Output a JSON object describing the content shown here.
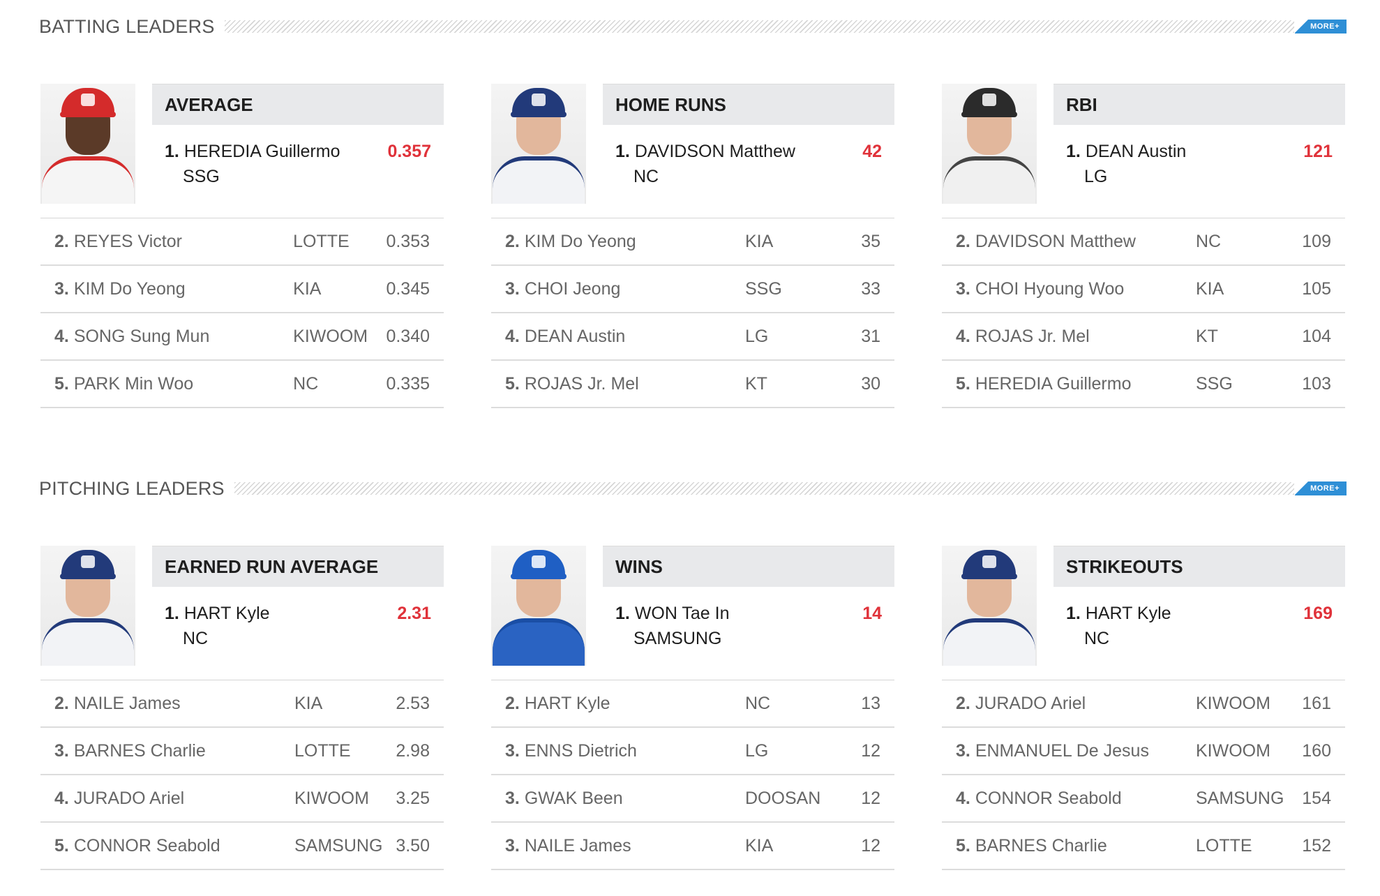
{
  "more_label": "MORE+",
  "batting": {
    "title": "BATTING LEADERS",
    "panels": [
      {
        "category": "AVERAGE",
        "leader": {
          "rank": "1.",
          "name": "HEREDIA Guillermo",
          "team": "SSG",
          "value": "0.357"
        },
        "photo": {
          "cap": "#d42b2b",
          "jersey": "#f5f5f5",
          "collar": "#d42b2b",
          "skin": "dark"
        },
        "rows": [
          {
            "rank": "2.",
            "name": "REYES Victor",
            "team": "LOTTE",
            "value": "0.353"
          },
          {
            "rank": "3.",
            "name": "KIM Do Yeong",
            "team": "KIA",
            "value": "0.345"
          },
          {
            "rank": "4.",
            "name": "SONG Sung Mun",
            "team": "KIWOOM",
            "value": "0.340"
          },
          {
            "rank": "5.",
            "name": "PARK Min Woo",
            "team": "NC",
            "value": "0.335"
          }
        ]
      },
      {
        "category": "HOME RUNS",
        "leader": {
          "rank": "1.",
          "name": "DAVIDSON Matthew",
          "team": "NC",
          "value": "42"
        },
        "photo": {
          "cap": "#223a7a",
          "jersey": "#f2f3f6",
          "collar": "#223a7a",
          "skin": "light"
        },
        "rows": [
          {
            "rank": "2.",
            "name": "KIM Do Yeong",
            "team": "KIA",
            "value": "35"
          },
          {
            "rank": "3.",
            "name": "CHOI Jeong",
            "team": "SSG",
            "value": "33"
          },
          {
            "rank": "4.",
            "name": "DEAN Austin",
            "team": "LG",
            "value": "31"
          },
          {
            "rank": "5.",
            "name": "ROJAS Jr. Mel",
            "team": "KT",
            "value": "30"
          }
        ]
      },
      {
        "category": "RBI",
        "leader": {
          "rank": "1.",
          "name": "DEAN Austin",
          "team": "LG",
          "value": "121"
        },
        "photo": {
          "cap": "#2b2b2b",
          "jersey": "#f0f0f0",
          "collar": "#444444",
          "skin": "light"
        },
        "rows": [
          {
            "rank": "2.",
            "name": "DAVIDSON Matthew",
            "team": "NC",
            "value": "109"
          },
          {
            "rank": "3.",
            "name": "CHOI Hyoung Woo",
            "team": "KIA",
            "value": "105"
          },
          {
            "rank": "4.",
            "name": "ROJAS Jr. Mel",
            "team": "KT",
            "value": "104"
          },
          {
            "rank": "5.",
            "name": "HEREDIA Guillermo",
            "team": "SSG",
            "value": "103"
          }
        ]
      }
    ]
  },
  "pitching": {
    "title": "PITCHING LEADERS",
    "panels": [
      {
        "category": "EARNED RUN AVERAGE",
        "leader": {
          "rank": "1.",
          "name": "HART Kyle",
          "team": "NC",
          "value": "2.31"
        },
        "photo": {
          "cap": "#223a7a",
          "jersey": "#f2f3f6",
          "collar": "#223a7a",
          "skin": "light"
        },
        "rows": [
          {
            "rank": "2.",
            "name": "NAILE James",
            "team": "KIA",
            "value": "2.53"
          },
          {
            "rank": "3.",
            "name": "BARNES Charlie",
            "team": "LOTTE",
            "value": "2.98"
          },
          {
            "rank": "4.",
            "name": "JURADO Ariel",
            "team": "KIWOOM",
            "value": "3.25"
          },
          {
            "rank": "5.",
            "name": "CONNOR Seabold",
            "team": "SAMSUNG",
            "value": "3.50"
          }
        ]
      },
      {
        "category": "WINS",
        "leader": {
          "rank": "1.",
          "name": "WON Tae In",
          "team": "SAMSUNG",
          "value": "14"
        },
        "photo": {
          "cap": "#1f5fc4",
          "jersey": "#2a63c2",
          "collar": "#1a4ea5",
          "skin": "light"
        },
        "rows": [
          {
            "rank": "2.",
            "name": "HART Kyle",
            "team": "NC",
            "value": "13"
          },
          {
            "rank": "3.",
            "name": "ENNS Dietrich",
            "team": "LG",
            "value": "12"
          },
          {
            "rank": "3.",
            "name": "GWAK Been",
            "team": "DOOSAN",
            "value": "12"
          },
          {
            "rank": "3.",
            "name": "NAILE James",
            "team": "KIA",
            "value": "12"
          }
        ]
      },
      {
        "category": "STRIKEOUTS",
        "leader": {
          "rank": "1.",
          "name": "HART Kyle",
          "team": "NC",
          "value": "169"
        },
        "photo": {
          "cap": "#223a7a",
          "jersey": "#f2f3f6",
          "collar": "#223a7a",
          "skin": "light"
        },
        "rows": [
          {
            "rank": "2.",
            "name": "JURADO Ariel",
            "team": "KIWOOM",
            "value": "161"
          },
          {
            "rank": "3.",
            "name": "ENMANUEL De Jesus",
            "team": "KIWOOM",
            "value": "160"
          },
          {
            "rank": "4.",
            "name": "CONNOR Seabold",
            "team": "SAMSUNG",
            "value": "154"
          },
          {
            "rank": "5.",
            "name": "BARNES Charlie",
            "team": "LOTTE",
            "value": "152"
          }
        ]
      }
    ]
  }
}
